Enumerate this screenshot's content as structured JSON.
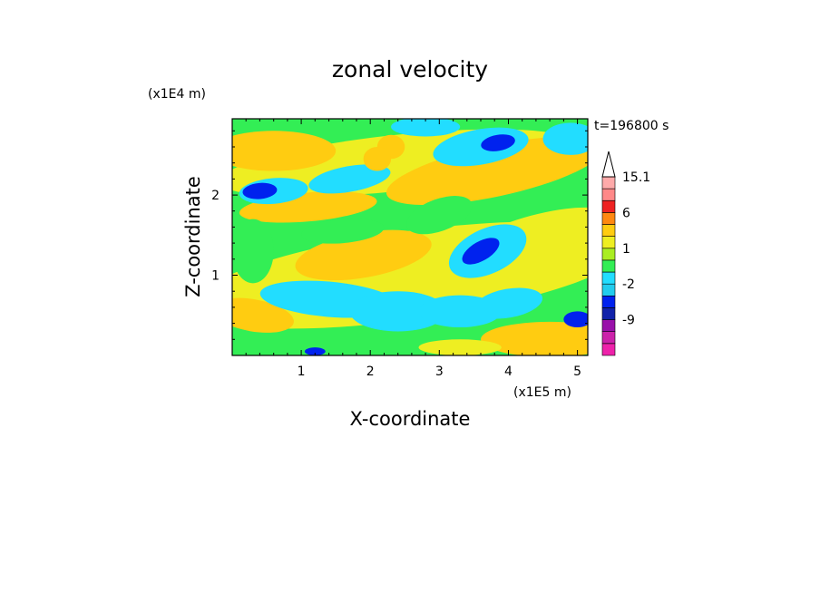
{
  "chart_data": {
    "type": "heatmap",
    "title": "zonal velocity",
    "xlabel": "X-coordinate",
    "ylabel": "Z-coordinate",
    "x_unit": "(x1E5 m)",
    "y_unit": "(x1E4 m)",
    "time_label": "t=196800 s",
    "xlim": [
      0,
      5.15
    ],
    "ylim": [
      0,
      2.95
    ],
    "x_ticks": [
      "1",
      "2",
      "3",
      "4",
      "5"
    ],
    "y_ticks": [
      "1",
      "2"
    ],
    "colorbar": {
      "labels": [
        "15.1",
        "6",
        "1",
        "-2",
        "-9"
      ],
      "levels": [
        -15,
        -12,
        -9,
        -6,
        -3,
        -2,
        -1,
        0,
        1,
        2,
        3,
        6,
        9,
        12,
        15.1
      ],
      "colors": [
        "#ee22aa",
        "#cc22aa",
        "#9911aa",
        "#1122aa",
        "#0022ee",
        "#22ccee",
        "#22ddff",
        "#33ee55",
        "#aaee22",
        "#eeee22",
        "#ffcc11",
        "#ff8811",
        "#ee2222",
        "#ff8888",
        "#ffaaaa"
      ],
      "extend": "max"
    },
    "field_description": "zonal velocity contour field over X-Z plane, banded structure tilted upward to the right",
    "colors": {
      "green": "#33ee55",
      "yellow": "#eeee22",
      "orange": "#ffcc11",
      "cyan": "#22ddff",
      "blue": "#0022ee"
    }
  }
}
